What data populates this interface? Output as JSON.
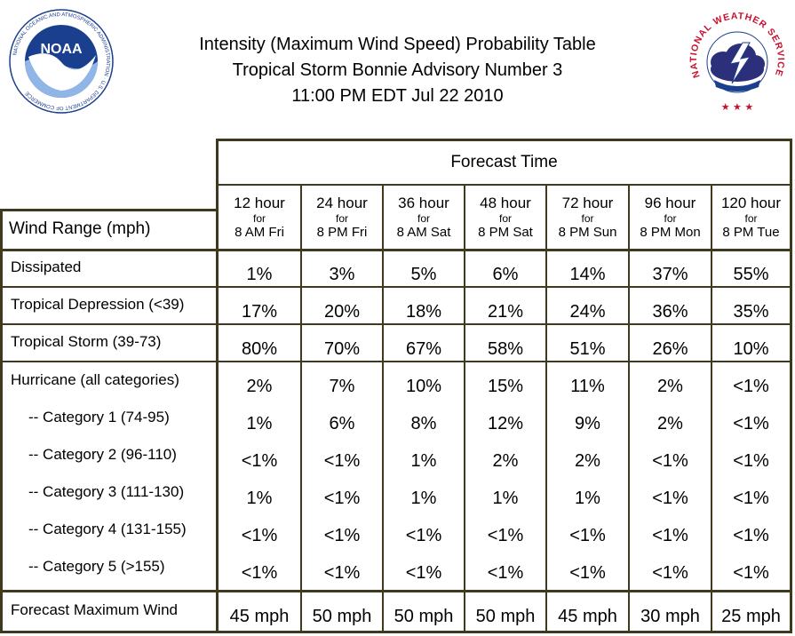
{
  "title": {
    "line1": "Intensity (Maximum Wind Speed) Probability Table",
    "line2": "Tropical Storm Bonnie Advisory Number 3",
    "line3": "11:00 PM EDT Jul 22 2010"
  },
  "logos": {
    "noaa": {
      "text": "NOAA",
      "ring_text": "NATIONAL OCEANIC AND ATMOSPHERIC ADMINISTRATION · U.S. DEPARTMENT OF COMMERCE",
      "color": "#1b3f8f"
    },
    "nws": {
      "ring_text": "NATIONAL WEATHER SERVICE",
      "color": "#c8102e"
    }
  },
  "table": {
    "forecast_time_label": "Forecast Time",
    "row_header_label": "Wind Range (mph)",
    "columns": [
      {
        "hours": "12 hour",
        "for": "for",
        "when": "8 AM Fri"
      },
      {
        "hours": "24 hour",
        "for": "for",
        "when": "8 PM Fri"
      },
      {
        "hours": "36 hour",
        "for": "for",
        "when": "8 AM Sat"
      },
      {
        "hours": "48 hour",
        "for": "for",
        "when": "8 PM Sat"
      },
      {
        "hours": "72 hour",
        "for": "for",
        "when": "8 PM Sun"
      },
      {
        "hours": "96 hour",
        "for": "for",
        "when": "8 PM Mon"
      },
      {
        "hours": "120 hour",
        "for": "for",
        "when": "8 PM Tue"
      }
    ],
    "rows": [
      {
        "label": "Dissipated",
        "values": [
          "1%",
          "3%",
          "5%",
          "6%",
          "14%",
          "37%",
          "55%"
        ]
      },
      {
        "label": "Tropical Depression (<39)",
        "values": [
          "17%",
          "20%",
          "18%",
          "21%",
          "24%",
          "36%",
          "35%"
        ]
      },
      {
        "label": "Tropical Storm (39-73)",
        "values": [
          "80%",
          "70%",
          "67%",
          "58%",
          "51%",
          "26%",
          "10%"
        ]
      },
      {
        "label": "Hurricane (all categories)",
        "values": [
          "2%",
          "7%",
          "10%",
          "15%",
          "11%",
          "2%",
          "<1%"
        ]
      },
      {
        "label": "-- Category 1 (74-95)",
        "values": [
          "1%",
          "6%",
          "8%",
          "12%",
          "9%",
          "2%",
          "<1%"
        ]
      },
      {
        "label": "-- Category 2 (96-110)",
        "values": [
          "<1%",
          "<1%",
          "1%",
          "2%",
          "2%",
          "<1%",
          "<1%"
        ]
      },
      {
        "label": "-- Category 3 (111-130)",
        "values": [
          "1%",
          "<1%",
          "1%",
          "1%",
          "1%",
          "<1%",
          "<1%"
        ]
      },
      {
        "label": "-- Category 4 (131-155)",
        "values": [
          "<1%",
          "<1%",
          "<1%",
          "<1%",
          "<1%",
          "<1%",
          "<1%"
        ]
      },
      {
        "label": "-- Category 5 (>155)",
        "values": [
          "<1%",
          "<1%",
          "<1%",
          "<1%",
          "<1%",
          "<1%",
          "<1%"
        ]
      },
      {
        "label": "Forecast Maximum Wind",
        "values": [
          "45 mph",
          "50 mph",
          "50 mph",
          "50 mph",
          "45 mph",
          "30 mph",
          "25 mph"
        ]
      }
    ]
  },
  "colors": {
    "border": "#3f3a1e"
  }
}
